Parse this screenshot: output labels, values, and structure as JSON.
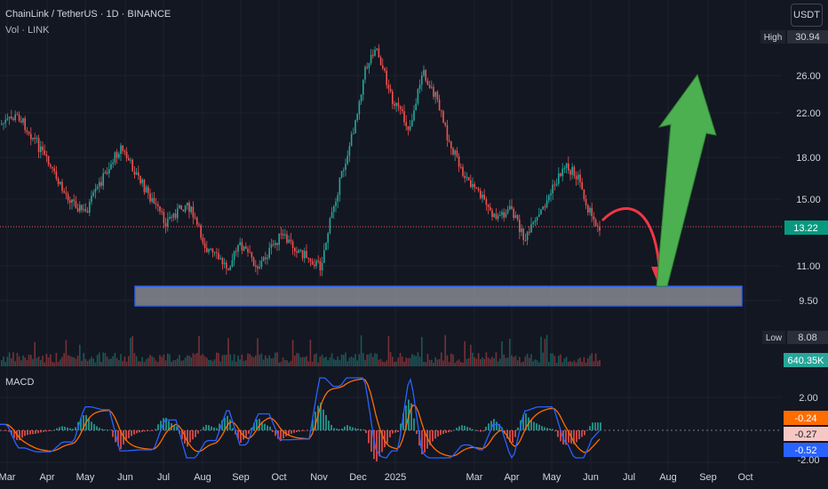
{
  "symbol": {
    "title": "ChainLink / TetherUS · 1D · BINANCE",
    "volume_label": "Vol · LINK"
  },
  "indicator": {
    "label": "MACD"
  },
  "currency_button": "USDT",
  "price_axis": {
    "ticks": [
      "30.94",
      "26.00",
      "22.00",
      "18.00",
      "15.00",
      "13.22",
      "11.00",
      "9.50",
      "8.08"
    ],
    "tick_values": [
      26,
      22,
      18,
      15,
      11,
      9.5
    ],
    "high_label": "High",
    "high_value": "30.94",
    "low_label": "Low",
    "low_value": "8.08",
    "last_price": "13.22",
    "volume_value": "640.35K"
  },
  "macd_axis": {
    "ticks": [
      "2.00",
      "-2.00"
    ],
    "values": [
      "-0.24",
      "-0.27",
      "-0.52"
    ]
  },
  "time_axis": [
    "Mar",
    "Apr",
    "May",
    "Jun",
    "Jul",
    "Aug",
    "Sep",
    "Oct",
    "Nov",
    "Dec",
    "2025",
    "Mar",
    "Apr",
    "May",
    "Jun",
    "Jul",
    "Aug",
    "Sep",
    "Oct"
  ],
  "colors": {
    "background": "#131722",
    "up": "#26a69a",
    "down": "#ef5350",
    "support_zone": "#b2b5be",
    "support_border": "#2962ff",
    "arrow_down": "#f23645",
    "arrow_up": "#4caf50",
    "macd_line": "#2962ff",
    "signal_line": "#ff6d00"
  }
}
